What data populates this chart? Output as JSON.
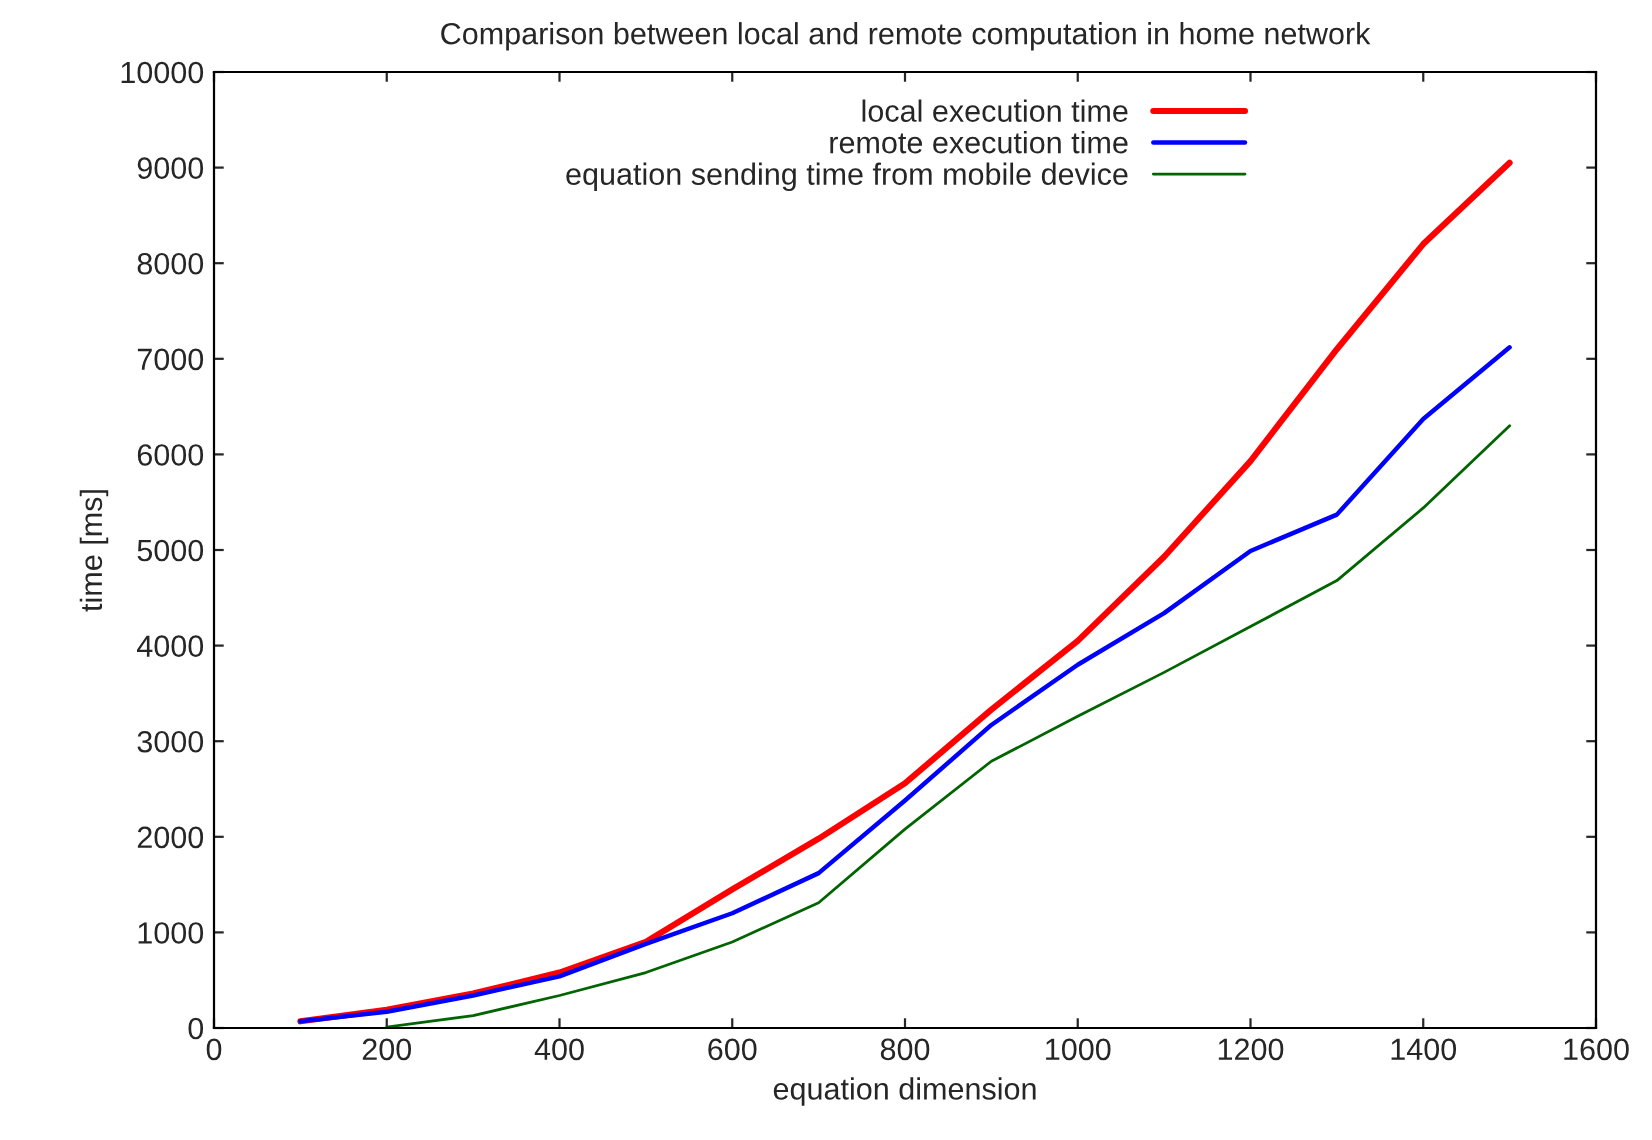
{
  "chart_data": {
    "type": "line",
    "title": "Comparison between local and remote computation in home network",
    "xlabel": "equation dimension",
    "ylabel": "time [ms]",
    "xlim": [
      0,
      1600
    ],
    "xticks": [
      0,
      200,
      400,
      600,
      800,
      1000,
      1200,
      1400,
      1600
    ],
    "ylim": [
      0,
      10000
    ],
    "yticks": [
      0,
      1000,
      2000,
      3000,
      4000,
      5000,
      6000,
      7000,
      8000,
      9000,
      10000
    ],
    "grid": false,
    "legend": "top",
    "marker": "none",
    "line_style": "solid",
    "series": [
      {
        "name": "local execution time",
        "color": "#ff0000",
        "x": [
          100,
          200,
          300,
          400,
          500,
          600,
          700,
          800,
          900,
          1000,
          1100,
          1200,
          1300,
          1400,
          1500
        ],
        "values": [
          70,
          190,
          360,
          580,
          900,
          1450,
          1980,
          2560,
          3330,
          4050,
          4930,
          5930,
          7100,
          8200,
          9050
        ]
      },
      {
        "name": "remote execution time",
        "color": "#0000ff",
        "x": [
          100,
          200,
          300,
          400,
          500,
          600,
          700,
          800,
          900,
          1000,
          1100,
          1200,
          1300,
          1400,
          1500
        ],
        "values": [
          70,
          170,
          340,
          540,
          880,
          1200,
          1620,
          2380,
          3170,
          3800,
          4340,
          4990,
          5370,
          6370,
          7120
        ]
      },
      {
        "name": "equation sending time from mobile device",
        "color": "#006400",
        "x": [
          200,
          300,
          400,
          500,
          600,
          700,
          800,
          900,
          1000,
          1100,
          1200,
          1300,
          1400,
          1500
        ],
        "values": [
          10,
          130,
          340,
          580,
          900,
          1310,
          2080,
          2790,
          3260,
          3720,
          4200,
          4680,
          5440,
          6300
        ]
      }
    ]
  }
}
